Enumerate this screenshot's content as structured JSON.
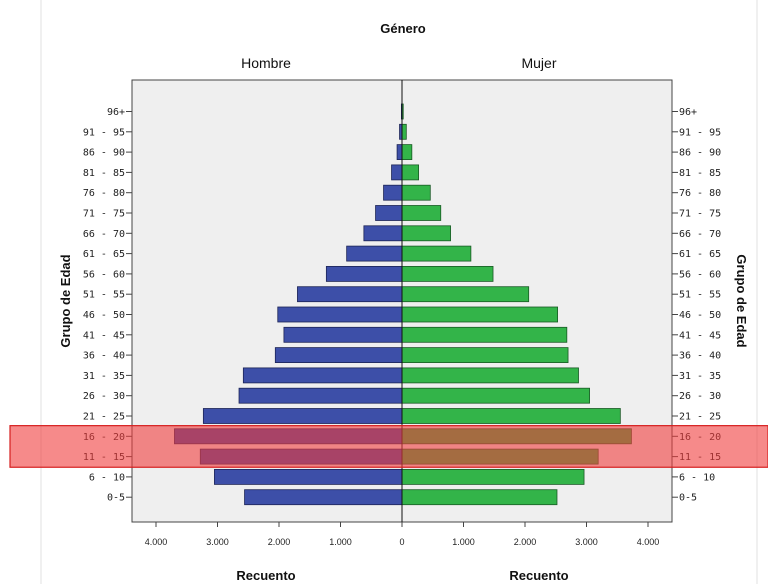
{
  "chart_data": {
    "type": "bar",
    "title": "Género",
    "panels": [
      "Hombre",
      "Mujer"
    ],
    "ylabel": "Grupo de Edad",
    "xlabel": "Recuento",
    "categories": [
      "96+",
      "91 - 95",
      "86 - 90",
      "81 - 85",
      "76 - 80",
      "71 - 75",
      "66 - 70",
      "61 - 65",
      "56 - 60",
      "51 - 55",
      "46 - 50",
      "41 - 45",
      "36 - 40",
      "31 - 35",
      "26 - 30",
      "21 - 25",
      "16 - 20",
      "11 - 15",
      "6 - 10",
      "0-5"
    ],
    "xticks_male": [
      "4.000",
      "3.000",
      "2.000",
      "1.000"
    ],
    "xticks_female": [
      "0",
      "1.000",
      "2.000",
      "3.000",
      "4.000"
    ],
    "xlim": [
      0,
      4000
    ],
    "series": [
      {
        "name": "Hombre",
        "color": "#3d4fa8",
        "values": [
          10,
          40,
          80,
          170,
          300,
          430,
          620,
          900,
          1230,
          1700,
          2020,
          1920,
          2060,
          2580,
          2650,
          3230,
          3700,
          3280,
          3050,
          2560
        ]
      },
      {
        "name": "Mujer",
        "color": "#33b449",
        "values": [
          20,
          70,
          160,
          270,
          460,
          630,
          790,
          1120,
          1480,
          2060,
          2530,
          2680,
          2700,
          2870,
          3050,
          3550,
          3730,
          3190,
          2960,
          2520
        ]
      }
    ],
    "highlight": {
      "categories": [
        "16 - 20",
        "11 - 15"
      ],
      "color": "#f03c3c"
    }
  }
}
